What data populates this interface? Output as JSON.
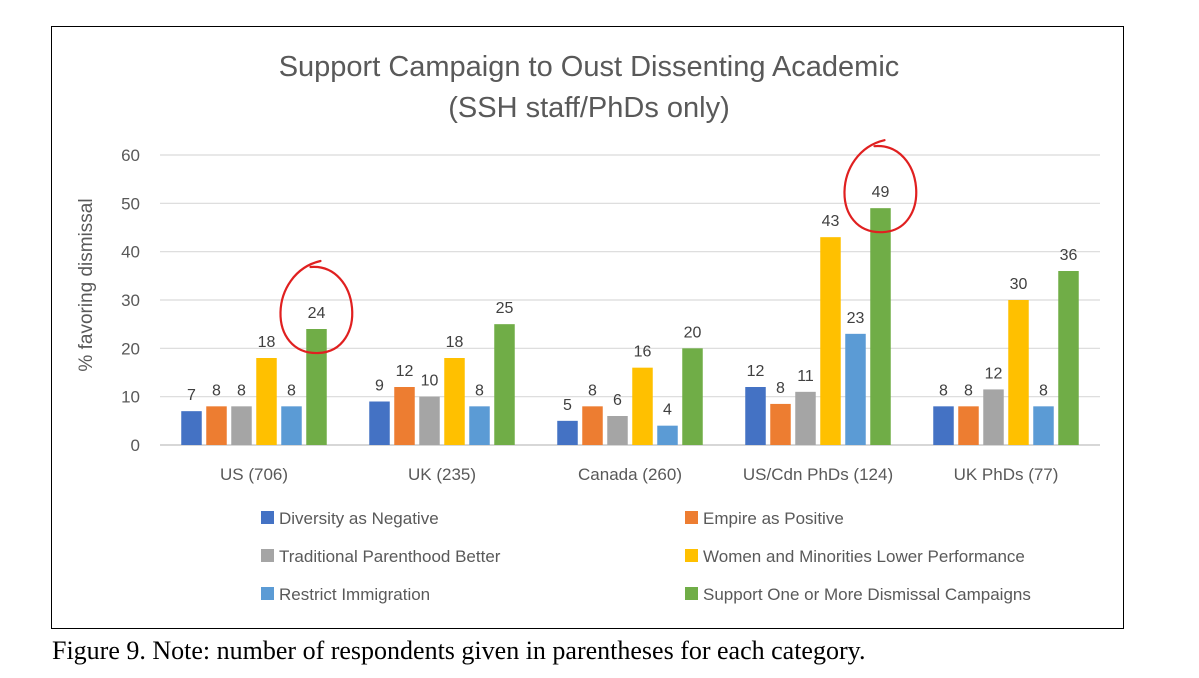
{
  "caption": "Figure 9. Note: number of respondents given in parentheses for each category.",
  "chart_data": {
    "type": "bar",
    "title": "Support Campaign to Oust Dissenting Academic",
    "subtitle": "(SSH staff/PhDs only)",
    "xlabel": "",
    "ylabel": "% favoring dismissal",
    "ylim": [
      0,
      60
    ],
    "yticks": [
      0,
      10,
      20,
      30,
      40,
      50,
      60
    ],
    "grid": true,
    "legend_position": "bottom",
    "categories": [
      "US (706)",
      "UK (235)",
      "Canada (260)",
      "US/Cdn PhDs (124)",
      "UK PhDs (77)"
    ],
    "series": [
      {
        "name": "Diversity as Negative",
        "color": "#4472C4",
        "values": [
          7,
          9,
          5,
          12,
          8
        ],
        "labels": [
          "7",
          "9",
          "5",
          "12",
          "8"
        ]
      },
      {
        "name": "Empire as Positive",
        "color": "#ED7D31",
        "values": [
          8,
          12,
          8,
          8.5,
          8
        ],
        "labels": [
          "8",
          "12",
          "8",
          "8",
          "8"
        ]
      },
      {
        "name": "Traditional Parenthood Better",
        "color": "#A5A5A5",
        "values": [
          8,
          10,
          6,
          11,
          11.5
        ],
        "labels": [
          "8",
          "10",
          "6",
          "11",
          "12"
        ]
      },
      {
        "name": "Women and Minorities Lower Performance",
        "color": "#FFC000",
        "values": [
          18,
          18,
          16,
          43,
          30
        ],
        "labels": [
          "18",
          "18",
          "16",
          "43",
          "30"
        ]
      },
      {
        "name": "Restrict Immigration",
        "color": "#5B9BD5",
        "values": [
          8,
          8,
          4,
          23,
          8
        ],
        "labels": [
          "8",
          "8",
          "4",
          "23",
          "8"
        ]
      },
      {
        "name": "Support One or More Dismissal Campaigns",
        "color": "#70AD47",
        "values": [
          24,
          25,
          20,
          49,
          36
        ],
        "labels": [
          "24",
          "25",
          "20",
          "49",
          "36"
        ]
      }
    ],
    "annotations": [
      {
        "type": "hand-drawn-circle",
        "color": "#E02020",
        "category": "US (706)",
        "series": "Support One or More Dismissal Campaigns",
        "value": 24
      },
      {
        "type": "hand-drawn-circle",
        "color": "#E02020",
        "category": "US/Cdn PhDs (124)",
        "series": "Support One or More Dismissal Campaigns",
        "value": 49
      }
    ]
  }
}
